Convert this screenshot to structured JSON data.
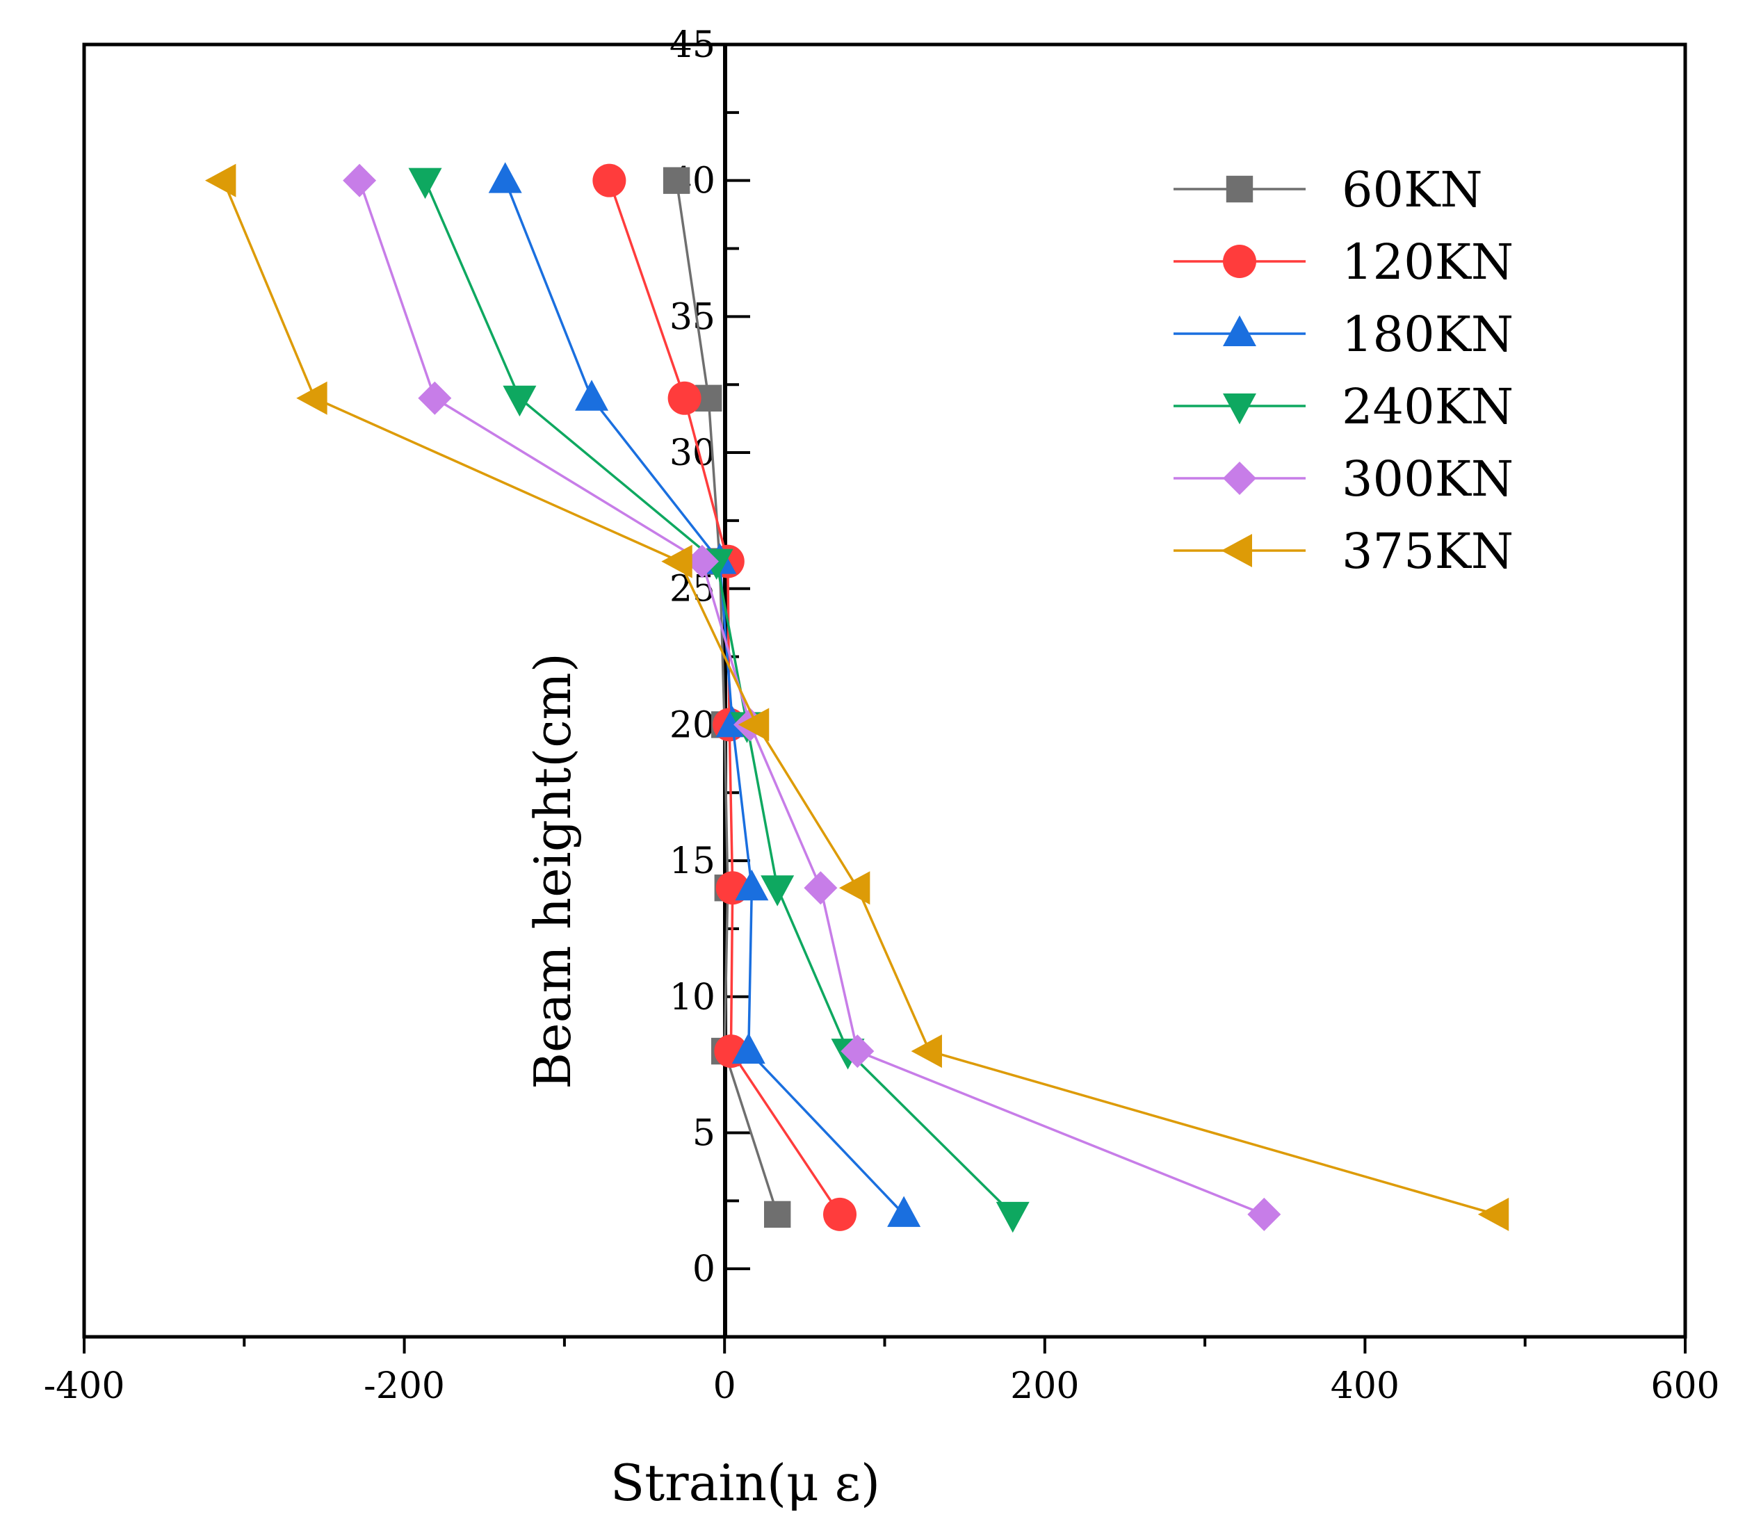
{
  "chart_data": {
    "type": "line",
    "title": "",
    "xlabel": "Strain(μ ε)",
    "ylabel": "Beam height(cm)",
    "xlim": [
      -400,
      600
    ],
    "ylim": [
      -2.5,
      45
    ],
    "x_ticks": [
      "-400",
      "-200",
      "0",
      "200",
      "400",
      "600"
    ],
    "y_ticks": [
      "0",
      "5",
      "10",
      "15",
      "20",
      "25",
      "30",
      "35",
      "40",
      "45"
    ],
    "legend_position": "top-right",
    "y": [
      40,
      32,
      26,
      20,
      14,
      8,
      2
    ],
    "series": [
      {
        "name": "60KN",
        "color": "#6f6f6f",
        "marker": "square",
        "x": [
          -30,
          -10,
          -3,
          0,
          2,
          0,
          33
        ]
      },
      {
        "name": "120KN",
        "color": "#ff3c3c",
        "marker": "circle",
        "x": [
          -72,
          -25,
          2,
          3,
          5,
          4,
          72
        ]
      },
      {
        "name": "180KN",
        "color": "#1a6fdf",
        "marker": "triangle-up",
        "x": [
          -137,
          -83,
          -3,
          5,
          17,
          15,
          112
        ]
      },
      {
        "name": "240KN",
        "color": "#0ea860",
        "marker": "triangle-down",
        "x": [
          -187,
          -128,
          -5,
          14,
          33,
          77,
          180
        ]
      },
      {
        "name": "300KN",
        "color": "#c77de8",
        "marker": "diamond",
        "x": [
          -228,
          -181,
          -14,
          16,
          60,
          83,
          337
        ]
      },
      {
        "name": "375KN",
        "color": "#dd9b07",
        "marker": "triangle-left",
        "x": [
          -313,
          -256,
          -28,
          20,
          83,
          128,
          482
        ]
      }
    ]
  }
}
